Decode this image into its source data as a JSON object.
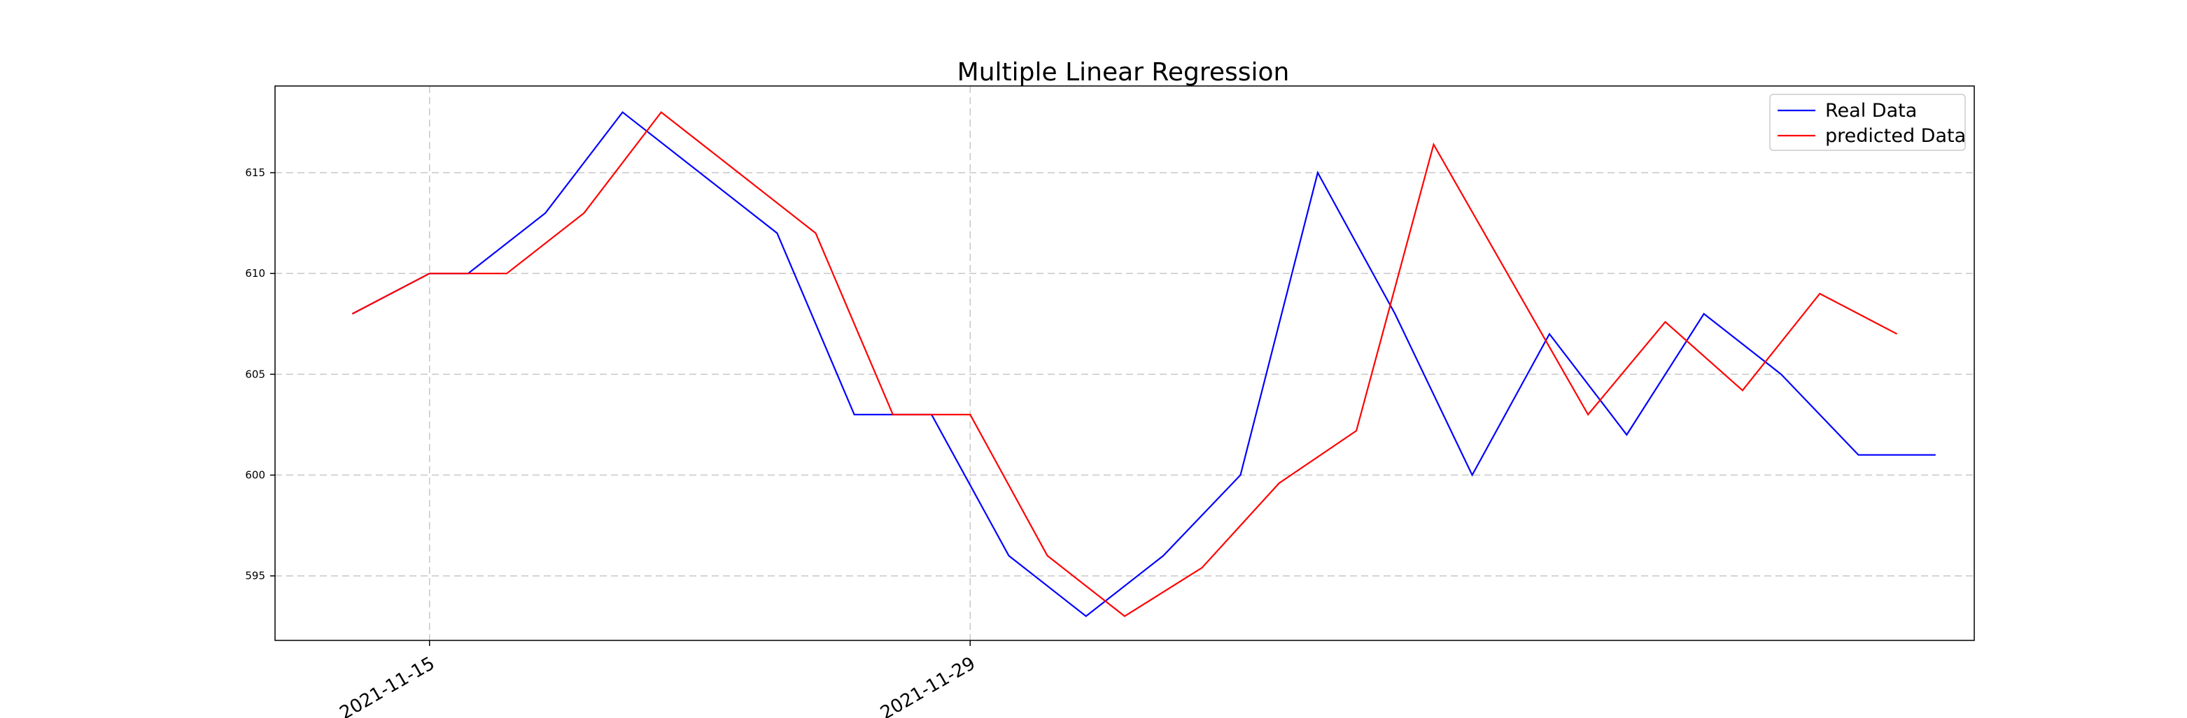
{
  "chart_data": {
    "type": "line",
    "title": "Multiple Linear Regression",
    "xlabel": "",
    "ylabel": "",
    "x": [
      "2021-11-13",
      "2021-11-15",
      "2021-11-17",
      "2021-11-19",
      "2021-11-21",
      "2021-11-23",
      "2021-11-25",
      "2021-11-27",
      "2021-11-29",
      "2021-12-01",
      "2021-12-03",
      "2021-12-05",
      "2021-12-07",
      "2021-12-09",
      "2021-12-11",
      "2021-12-13",
      "2021-12-15",
      "2021-12-17",
      "2021-12-19",
      "2021-12-21",
      "2021-12-23"
    ],
    "x_tick_labels": [
      "2021-11-15",
      "2021-11-29"
    ],
    "y_ticks": [
      595,
      600,
      605,
      610,
      615
    ],
    "xlim": [
      "2021-11-11",
      "2021-12-25"
    ],
    "ylim": [
      591.8,
      619.3
    ],
    "grid": true,
    "legend_position": "top-right",
    "series": [
      {
        "name": "Real Data",
        "color": "#0000ff",
        "x": [
          "2021-11-13",
          "2021-11-15",
          "2021-11-16",
          "2021-11-18",
          "2021-11-20",
          "2021-11-24",
          "2021-11-26",
          "2021-11-28",
          "2021-11-30",
          "2021-12-02",
          "2021-12-04",
          "2021-12-06",
          "2021-12-08",
          "2021-12-10",
          "2021-12-12",
          "2021-12-14",
          "2021-12-16",
          "2021-12-18",
          "2021-12-20",
          "2021-12-22",
          "2021-12-24"
        ],
        "values": [
          608,
          610,
          610,
          613,
          618,
          612,
          603,
          603,
          596,
          593,
          596,
          600,
          615,
          608,
          600,
          607,
          602,
          608,
          605,
          601,
          601
        ]
      },
      {
        "name": "predicted Data",
        "color": "#ff0000",
        "x": [],
        "values": []
      }
    ]
  }
}
